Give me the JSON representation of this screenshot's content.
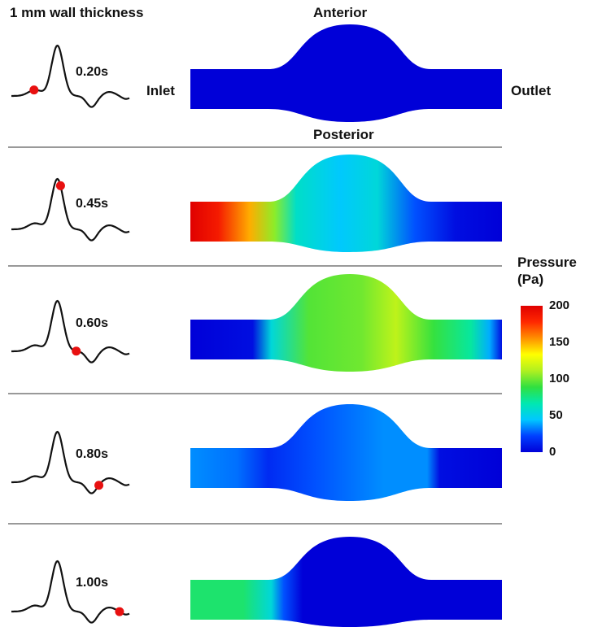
{
  "figure_title": "1 mm wall thickness",
  "orientation": {
    "anterior": "Anterior",
    "posterior": "Posterior",
    "inlet": "Inlet",
    "outlet": "Outlet"
  },
  "panels": [
    {
      "time": "0.20s",
      "marker_phase": 0.2,
      "pressure_profile": [
        {
          "x": 0,
          "p": 0
        },
        {
          "x": 1,
          "p": 0
        }
      ]
    },
    {
      "time": "0.45s",
      "marker_phase": 0.45,
      "pressure_profile": [
        {
          "x": 0,
          "p": 200
        },
        {
          "x": 0.09,
          "p": 185
        },
        {
          "x": 0.19,
          "p": 150
        },
        {
          "x": 0.27,
          "p": 105
        },
        {
          "x": 0.34,
          "p": 60
        },
        {
          "x": 0.48,
          "p": 45
        },
        {
          "x": 0.6,
          "p": 55
        },
        {
          "x": 0.72,
          "p": 25
        },
        {
          "x": 0.85,
          "p": 5
        },
        {
          "x": 1,
          "p": 0
        }
      ]
    },
    {
      "time": "0.60s",
      "marker_phase": 0.6,
      "pressure_profile": [
        {
          "x": 0,
          "p": 0
        },
        {
          "x": 0.2,
          "p": 5
        },
        {
          "x": 0.26,
          "p": 55
        },
        {
          "x": 0.38,
          "p": 95
        },
        {
          "x": 0.55,
          "p": 100
        },
        {
          "x": 0.66,
          "p": 115
        },
        {
          "x": 0.78,
          "p": 90
        },
        {
          "x": 0.9,
          "p": 70
        },
        {
          "x": 0.96,
          "p": 40
        },
        {
          "x": 1,
          "p": 5
        }
      ]
    },
    {
      "time": "0.80s",
      "marker_phase": 0.8,
      "pressure_profile": [
        {
          "x": 0,
          "p": 35
        },
        {
          "x": 0.15,
          "p": 30
        },
        {
          "x": 0.25,
          "p": 15
        },
        {
          "x": 0.4,
          "p": 25
        },
        {
          "x": 0.62,
          "p": 35
        },
        {
          "x": 0.76,
          "p": 35
        },
        {
          "x": 0.8,
          "p": 5
        },
        {
          "x": 1,
          "p": 0
        }
      ]
    },
    {
      "time": "1.00s",
      "marker_phase": 1.0,
      "pressure_profile": [
        {
          "x": 0,
          "p": 80
        },
        {
          "x": 0.17,
          "p": 80
        },
        {
          "x": 0.26,
          "p": 55
        },
        {
          "x": 0.3,
          "p": 25
        },
        {
          "x": 0.36,
          "p": 0
        },
        {
          "x": 1,
          "p": 0
        }
      ]
    }
  ],
  "colorbar": {
    "title_line1": "Pressure",
    "title_line2": "(Pa)",
    "min": 0,
    "max": 200,
    "ticks": [
      "200",
      "150",
      "100",
      "50",
      "0"
    ],
    "colors": [
      "#0000d8",
      "#0040ff",
      "#00c8ff",
      "#00e8b0",
      "#30e040",
      "#b0f020",
      "#ffff00",
      "#ff9000",
      "#ff2800",
      "#e00000"
    ]
  },
  "waveform_color": "#111111",
  "marker_color": "#e81010"
}
